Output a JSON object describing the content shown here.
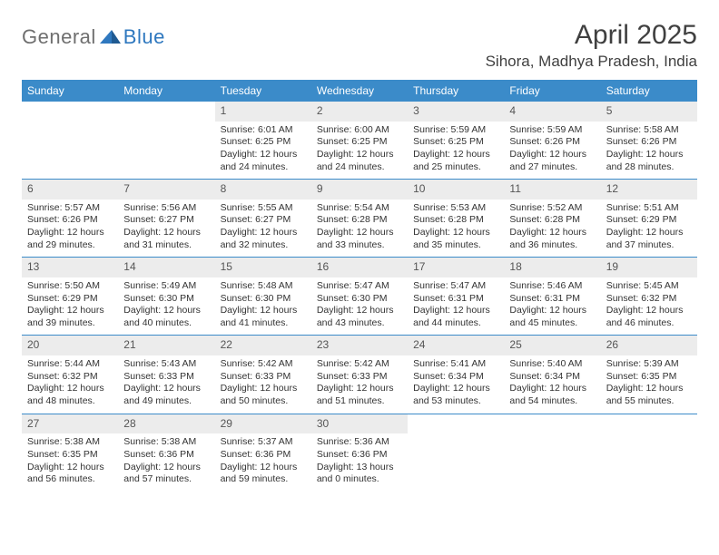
{
  "logo": {
    "text1": "General",
    "text2": "Blue"
  },
  "title": "April 2025",
  "location": "Sihora, Madhya Pradesh, India",
  "colors": {
    "header_bg": "#3b8bc9",
    "header_text": "#ffffff",
    "daynum_bg": "#ececec",
    "rule": "#3b8bc9",
    "logo_gray": "#6f6f6f",
    "logo_blue": "#2f78bf",
    "body_text": "#333333",
    "page_bg": "#ffffff"
  },
  "typography": {
    "title_fontsize": 30,
    "location_fontsize": 17,
    "weekday_fontsize": 12,
    "daynum_fontsize": 12,
    "body_fontsize": 10.5
  },
  "weekdays": [
    "Sunday",
    "Monday",
    "Tuesday",
    "Wednesday",
    "Thursday",
    "Friday",
    "Saturday"
  ],
  "weeks": [
    [
      null,
      null,
      {
        "n": "1",
        "sr": "Sunrise: 6:01 AM",
        "ss": "Sunset: 6:25 PM",
        "d1": "Daylight: 12 hours",
        "d2": "and 24 minutes."
      },
      {
        "n": "2",
        "sr": "Sunrise: 6:00 AM",
        "ss": "Sunset: 6:25 PM",
        "d1": "Daylight: 12 hours",
        "d2": "and 24 minutes."
      },
      {
        "n": "3",
        "sr": "Sunrise: 5:59 AM",
        "ss": "Sunset: 6:25 PM",
        "d1": "Daylight: 12 hours",
        "d2": "and 25 minutes."
      },
      {
        "n": "4",
        "sr": "Sunrise: 5:59 AM",
        "ss": "Sunset: 6:26 PM",
        "d1": "Daylight: 12 hours",
        "d2": "and 27 minutes."
      },
      {
        "n": "5",
        "sr": "Sunrise: 5:58 AM",
        "ss": "Sunset: 6:26 PM",
        "d1": "Daylight: 12 hours",
        "d2": "and 28 minutes."
      }
    ],
    [
      {
        "n": "6",
        "sr": "Sunrise: 5:57 AM",
        "ss": "Sunset: 6:26 PM",
        "d1": "Daylight: 12 hours",
        "d2": "and 29 minutes."
      },
      {
        "n": "7",
        "sr": "Sunrise: 5:56 AM",
        "ss": "Sunset: 6:27 PM",
        "d1": "Daylight: 12 hours",
        "d2": "and 31 minutes."
      },
      {
        "n": "8",
        "sr": "Sunrise: 5:55 AM",
        "ss": "Sunset: 6:27 PM",
        "d1": "Daylight: 12 hours",
        "d2": "and 32 minutes."
      },
      {
        "n": "9",
        "sr": "Sunrise: 5:54 AM",
        "ss": "Sunset: 6:28 PM",
        "d1": "Daylight: 12 hours",
        "d2": "and 33 minutes."
      },
      {
        "n": "10",
        "sr": "Sunrise: 5:53 AM",
        "ss": "Sunset: 6:28 PM",
        "d1": "Daylight: 12 hours",
        "d2": "and 35 minutes."
      },
      {
        "n": "11",
        "sr": "Sunrise: 5:52 AM",
        "ss": "Sunset: 6:28 PM",
        "d1": "Daylight: 12 hours",
        "d2": "and 36 minutes."
      },
      {
        "n": "12",
        "sr": "Sunrise: 5:51 AM",
        "ss": "Sunset: 6:29 PM",
        "d1": "Daylight: 12 hours",
        "d2": "and 37 minutes."
      }
    ],
    [
      {
        "n": "13",
        "sr": "Sunrise: 5:50 AM",
        "ss": "Sunset: 6:29 PM",
        "d1": "Daylight: 12 hours",
        "d2": "and 39 minutes."
      },
      {
        "n": "14",
        "sr": "Sunrise: 5:49 AM",
        "ss": "Sunset: 6:30 PM",
        "d1": "Daylight: 12 hours",
        "d2": "and 40 minutes."
      },
      {
        "n": "15",
        "sr": "Sunrise: 5:48 AM",
        "ss": "Sunset: 6:30 PM",
        "d1": "Daylight: 12 hours",
        "d2": "and 41 minutes."
      },
      {
        "n": "16",
        "sr": "Sunrise: 5:47 AM",
        "ss": "Sunset: 6:30 PM",
        "d1": "Daylight: 12 hours",
        "d2": "and 43 minutes."
      },
      {
        "n": "17",
        "sr": "Sunrise: 5:47 AM",
        "ss": "Sunset: 6:31 PM",
        "d1": "Daylight: 12 hours",
        "d2": "and 44 minutes."
      },
      {
        "n": "18",
        "sr": "Sunrise: 5:46 AM",
        "ss": "Sunset: 6:31 PM",
        "d1": "Daylight: 12 hours",
        "d2": "and 45 minutes."
      },
      {
        "n": "19",
        "sr": "Sunrise: 5:45 AM",
        "ss": "Sunset: 6:32 PM",
        "d1": "Daylight: 12 hours",
        "d2": "and 46 minutes."
      }
    ],
    [
      {
        "n": "20",
        "sr": "Sunrise: 5:44 AM",
        "ss": "Sunset: 6:32 PM",
        "d1": "Daylight: 12 hours",
        "d2": "and 48 minutes."
      },
      {
        "n": "21",
        "sr": "Sunrise: 5:43 AM",
        "ss": "Sunset: 6:33 PM",
        "d1": "Daylight: 12 hours",
        "d2": "and 49 minutes."
      },
      {
        "n": "22",
        "sr": "Sunrise: 5:42 AM",
        "ss": "Sunset: 6:33 PM",
        "d1": "Daylight: 12 hours",
        "d2": "and 50 minutes."
      },
      {
        "n": "23",
        "sr": "Sunrise: 5:42 AM",
        "ss": "Sunset: 6:33 PM",
        "d1": "Daylight: 12 hours",
        "d2": "and 51 minutes."
      },
      {
        "n": "24",
        "sr": "Sunrise: 5:41 AM",
        "ss": "Sunset: 6:34 PM",
        "d1": "Daylight: 12 hours",
        "d2": "and 53 minutes."
      },
      {
        "n": "25",
        "sr": "Sunrise: 5:40 AM",
        "ss": "Sunset: 6:34 PM",
        "d1": "Daylight: 12 hours",
        "d2": "and 54 minutes."
      },
      {
        "n": "26",
        "sr": "Sunrise: 5:39 AM",
        "ss": "Sunset: 6:35 PM",
        "d1": "Daylight: 12 hours",
        "d2": "and 55 minutes."
      }
    ],
    [
      {
        "n": "27",
        "sr": "Sunrise: 5:38 AM",
        "ss": "Sunset: 6:35 PM",
        "d1": "Daylight: 12 hours",
        "d2": "and 56 minutes."
      },
      {
        "n": "28",
        "sr": "Sunrise: 5:38 AM",
        "ss": "Sunset: 6:36 PM",
        "d1": "Daylight: 12 hours",
        "d2": "and 57 minutes."
      },
      {
        "n": "29",
        "sr": "Sunrise: 5:37 AM",
        "ss": "Sunset: 6:36 PM",
        "d1": "Daylight: 12 hours",
        "d2": "and 59 minutes."
      },
      {
        "n": "30",
        "sr": "Sunrise: 5:36 AM",
        "ss": "Sunset: 6:36 PM",
        "d1": "Daylight: 13 hours",
        "d2": "and 0 minutes."
      },
      null,
      null,
      null
    ]
  ]
}
